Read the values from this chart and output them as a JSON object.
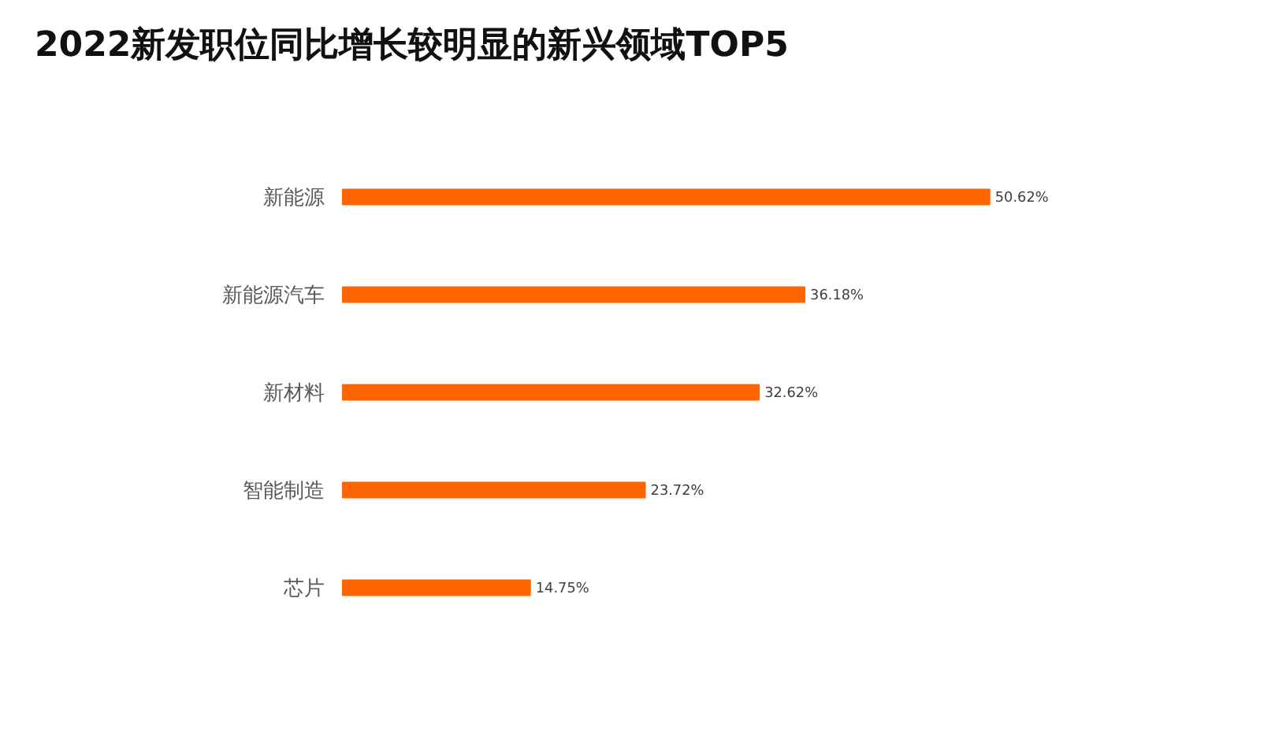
{
  "chart_data": {
    "type": "bar",
    "orientation": "horizontal",
    "title": "2022新发职位同比增长较明显的新兴领域TOP5",
    "categories": [
      "新能源",
      "新能源汽车",
      "新材料",
      "智能制造",
      "芯片"
    ],
    "values": [
      50.62,
      36.18,
      32.62,
      23.72,
      14.75
    ],
    "value_labels": [
      "50.62%",
      "36.18%",
      "32.62%",
      "23.72%",
      "14.75%"
    ],
    "color": "#ff6600"
  }
}
